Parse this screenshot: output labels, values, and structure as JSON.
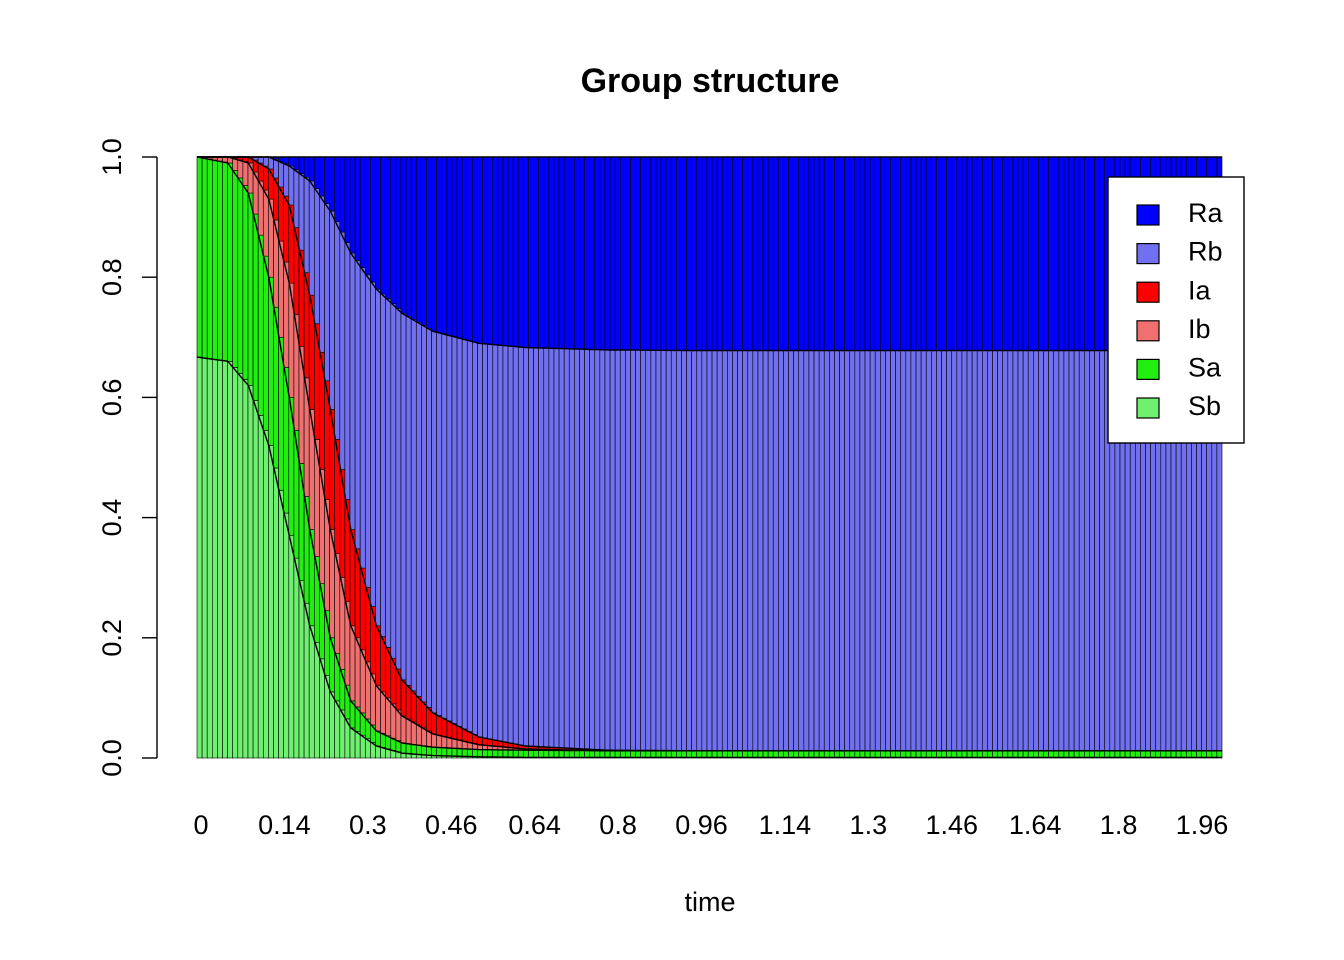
{
  "chart_data": {
    "type": "bar",
    "stacked": true,
    "title": "Group structure",
    "xlabel": "time",
    "ylabel": "",
    "ylim": [
      0,
      1
    ],
    "yticks": [
      "0.0",
      "0.2",
      "0.4",
      "0.6",
      "0.8",
      "1.0"
    ],
    "xtick_labels": [
      "0",
      "0.14",
      "0.3",
      "0.46",
      "0.64",
      "0.8",
      "0.96",
      "1.14",
      "1.3",
      "1.46",
      "1.64",
      "1.8",
      "1.96"
    ],
    "legend_position": "top-right",
    "stack_order_bottom_to_top": [
      "Sb",
      "Sa",
      "Ib",
      "Ia",
      "Rb",
      "Ra"
    ],
    "series": [
      {
        "name": "Ra",
        "color": "#0000FF"
      },
      {
        "name": "Rb",
        "color": "#7070F0"
      },
      {
        "name": "Ia",
        "color": "#FF0000"
      },
      {
        "name": "Ib",
        "color": "#F07070"
      },
      {
        "name": "Sa",
        "color": "#22EE11"
      },
      {
        "name": "Sb",
        "color": "#70F070"
      }
    ],
    "time": [
      0,
      0.06,
      0.1,
      0.14,
      0.18,
      0.22,
      0.26,
      0.3,
      0.35,
      0.4,
      0.46,
      0.55,
      0.64,
      0.8,
      0.96,
      1.3,
      2.0
    ],
    "cumulative_boundaries": {
      "Sb": [
        0.667,
        0.66,
        0.62,
        0.52,
        0.37,
        0.22,
        0.11,
        0.05,
        0.02,
        0.008,
        0.004,
        0.002,
        0.001,
        0.001,
        0.001,
        0.001,
        0.001
      ],
      "Sa": [
        1.0,
        0.99,
        0.94,
        0.8,
        0.6,
        0.38,
        0.2,
        0.095,
        0.045,
        0.025,
        0.018,
        0.014,
        0.013,
        0.012,
        0.012,
        0.012,
        0.012
      ],
      "Ib": [
        1.0,
        1.0,
        0.99,
        0.93,
        0.79,
        0.58,
        0.38,
        0.22,
        0.12,
        0.07,
        0.04,
        0.022,
        0.015,
        0.012,
        0.012,
        0.012,
        0.012
      ],
      "Ia": [
        1.0,
        1.0,
        1.0,
        0.98,
        0.92,
        0.77,
        0.58,
        0.38,
        0.22,
        0.13,
        0.075,
        0.035,
        0.02,
        0.013,
        0.012,
        0.012,
        0.012
      ],
      "Rb": [
        1.0,
        1.0,
        1.0,
        1.0,
        0.985,
        0.96,
        0.91,
        0.84,
        0.78,
        0.74,
        0.71,
        0.69,
        0.683,
        0.679,
        0.678,
        0.678,
        0.678
      ],
      "Ra": [
        1.0,
        1.0,
        1.0,
        1.0,
        1.0,
        1.0,
        1.0,
        1.0,
        1.0,
        1.0,
        1.0,
        1.0,
        1.0,
        1.0,
        1.0,
        1.0,
        1.0
      ]
    }
  }
}
